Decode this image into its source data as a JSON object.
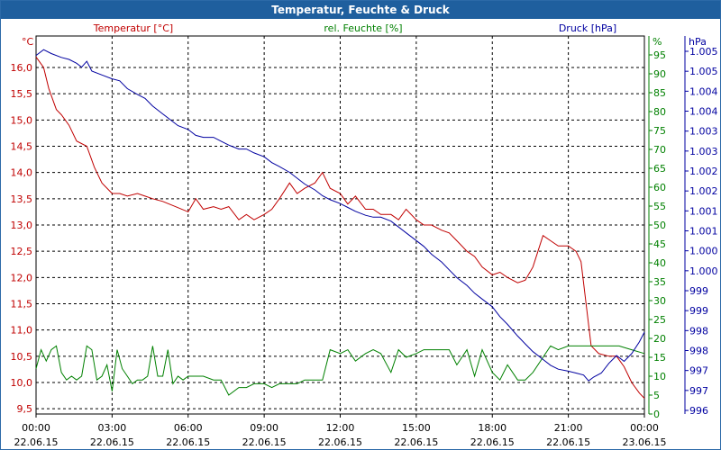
{
  "chart_data": {
    "type": "line",
    "title": "Temperatur, Feuchte & Druck",
    "x_tick_times": [
      "00:00",
      "03:00",
      "06:00",
      "09:00",
      "12:00",
      "15:00",
      "18:00",
      "21:00",
      "00:00"
    ],
    "x_tick_dates": [
      "22.06.15",
      "22.06.15",
      "22.06.15",
      "22.06.15",
      "22.06.15",
      "22.06.15",
      "22.06.15",
      "22.06.15",
      "23.06.15"
    ],
    "x_range_hours": [
      0,
      24
    ],
    "axes": {
      "temperature": {
        "unit": "°C",
        "range": [
          9.4,
          16.6
        ],
        "ticks": [
          "16,0",
          "15,5",
          "15,0",
          "14,5",
          "14,0",
          "13,5",
          "13,0",
          "12,5",
          "12,0",
          "11,5",
          "11,0",
          "10,5",
          "10,0",
          "9,5"
        ],
        "color": "#c00000"
      },
      "humidity": {
        "unit": "%",
        "range": [
          0,
          100
        ],
        "ticks": [
          "95",
          "90",
          "85",
          "80",
          "75",
          "70",
          "65",
          "60",
          "55",
          "50",
          "45",
          "40",
          "35",
          "30",
          "25",
          "20",
          "15",
          "10",
          "5",
          "0"
        ],
        "color": "#008000"
      },
      "pressure": {
        "unit": "hPa",
        "range": [
          996.0,
          1005.7
        ],
        "ticks": [
          "1.005",
          "1.005",
          "1.004",
          "1.004",
          "1.003",
          "1.003",
          "1.002",
          "1.002",
          "1.001",
          "1.001",
          "1.000",
          "1.000",
          "999",
          "999",
          "998",
          "998",
          "997",
          "997",
          "996"
        ],
        "color": "#0000a0"
      }
    },
    "series": [
      {
        "name": "Temperatur [°C]",
        "axis": "temperature",
        "color": "#c00000",
        "points": [
          [
            0,
            16.2
          ],
          [
            0.3,
            16.0
          ],
          [
            0.5,
            15.6
          ],
          [
            0.8,
            15.2
          ],
          [
            1.0,
            15.1
          ],
          [
            1.3,
            14.9
          ],
          [
            1.6,
            14.6
          ],
          [
            2.0,
            14.5
          ],
          [
            2.3,
            14.1
          ],
          [
            2.6,
            13.8
          ],
          [
            3.0,
            13.6
          ],
          [
            3.3,
            13.6
          ],
          [
            3.6,
            13.55
          ],
          [
            4.0,
            13.6
          ],
          [
            4.3,
            13.55
          ],
          [
            4.6,
            13.5
          ],
          [
            5.0,
            13.45
          ],
          [
            5.5,
            13.35
          ],
          [
            6.0,
            13.25
          ],
          [
            6.3,
            13.5
          ],
          [
            6.6,
            13.3
          ],
          [
            7.0,
            13.35
          ],
          [
            7.3,
            13.3
          ],
          [
            7.6,
            13.35
          ],
          [
            8.0,
            13.1
          ],
          [
            8.3,
            13.2
          ],
          [
            8.6,
            13.1
          ],
          [
            9.0,
            13.2
          ],
          [
            9.3,
            13.3
          ],
          [
            9.6,
            13.5
          ],
          [
            10.0,
            13.8
          ],
          [
            10.3,
            13.6
          ],
          [
            10.6,
            13.7
          ],
          [
            11.0,
            13.8
          ],
          [
            11.3,
            14.0
          ],
          [
            11.6,
            13.7
          ],
          [
            12.0,
            13.6
          ],
          [
            12.3,
            13.4
          ],
          [
            12.6,
            13.55
          ],
          [
            13.0,
            13.3
          ],
          [
            13.3,
            13.3
          ],
          [
            13.6,
            13.2
          ],
          [
            14.0,
            13.2
          ],
          [
            14.3,
            13.1
          ],
          [
            14.6,
            13.3
          ],
          [
            15.0,
            13.1
          ],
          [
            15.3,
            13.0
          ],
          [
            15.6,
            13.0
          ],
          [
            16.0,
            12.9
          ],
          [
            16.3,
            12.85
          ],
          [
            16.6,
            12.7
          ],
          [
            17.0,
            12.5
          ],
          [
            17.3,
            12.4
          ],
          [
            17.6,
            12.2
          ],
          [
            18.0,
            12.05
          ],
          [
            18.3,
            12.1
          ],
          [
            18.6,
            12.0
          ],
          [
            19.0,
            11.9
          ],
          [
            19.3,
            11.95
          ],
          [
            19.6,
            12.2
          ],
          [
            20.0,
            12.8
          ],
          [
            20.3,
            12.7
          ],
          [
            20.6,
            12.6
          ],
          [
            21.0,
            12.6
          ],
          [
            21.3,
            12.5
          ],
          [
            21.5,
            12.3
          ],
          [
            21.7,
            11.5
          ],
          [
            21.9,
            10.7
          ],
          [
            22.2,
            10.55
          ],
          [
            22.6,
            10.5
          ],
          [
            22.9,
            10.5
          ],
          [
            23.2,
            10.3
          ],
          [
            23.5,
            10.0
          ],
          [
            23.8,
            9.8
          ],
          [
            24.0,
            9.7
          ]
        ]
      },
      {
        "name": "rel. Feuchte [%]",
        "axis": "humidity",
        "color": "#008000",
        "points": [
          [
            0,
            12
          ],
          [
            0.2,
            17
          ],
          [
            0.4,
            14
          ],
          [
            0.6,
            17
          ],
          [
            0.8,
            18
          ],
          [
            1.0,
            11
          ],
          [
            1.2,
            9
          ],
          [
            1.4,
            10
          ],
          [
            1.6,
            9
          ],
          [
            1.8,
            10
          ],
          [
            2.0,
            18
          ],
          [
            2.2,
            17
          ],
          [
            2.4,
            9
          ],
          [
            2.6,
            10
          ],
          [
            2.8,
            13
          ],
          [
            3.0,
            6
          ],
          [
            3.2,
            17
          ],
          [
            3.4,
            12
          ],
          [
            3.6,
            10
          ],
          [
            3.8,
            8
          ],
          [
            4.0,
            9
          ],
          [
            4.2,
            9
          ],
          [
            4.4,
            10
          ],
          [
            4.6,
            18
          ],
          [
            4.8,
            10
          ],
          [
            5.0,
            10
          ],
          [
            5.2,
            17
          ],
          [
            5.4,
            8
          ],
          [
            5.6,
            10
          ],
          [
            5.8,
            9
          ],
          [
            6.0,
            10
          ],
          [
            6.3,
            10
          ],
          [
            6.6,
            10
          ],
          [
            7.0,
            9
          ],
          [
            7.3,
            9
          ],
          [
            7.6,
            5
          ],
          [
            8.0,
            7
          ],
          [
            8.3,
            7
          ],
          [
            8.6,
            8
          ],
          [
            9.0,
            8
          ],
          [
            9.3,
            7
          ],
          [
            9.6,
            8
          ],
          [
            10.0,
            8
          ],
          [
            10.3,
            8
          ],
          [
            10.6,
            9
          ],
          [
            11.0,
            9
          ],
          [
            11.3,
            9
          ],
          [
            11.6,
            17
          ],
          [
            12.0,
            16
          ],
          [
            12.3,
            17
          ],
          [
            12.6,
            14
          ],
          [
            13.0,
            16
          ],
          [
            13.3,
            17
          ],
          [
            13.6,
            16
          ],
          [
            14.0,
            11
          ],
          [
            14.3,
            17
          ],
          [
            14.6,
            15
          ],
          [
            15.0,
            16
          ],
          [
            15.3,
            17
          ],
          [
            15.6,
            17
          ],
          [
            16.0,
            17
          ],
          [
            16.3,
            17
          ],
          [
            16.6,
            13
          ],
          [
            17.0,
            17
          ],
          [
            17.3,
            10
          ],
          [
            17.6,
            17
          ],
          [
            18.0,
            11
          ],
          [
            18.3,
            9
          ],
          [
            18.6,
            13
          ],
          [
            19.0,
            9
          ],
          [
            19.3,
            9
          ],
          [
            19.6,
            11
          ],
          [
            20.0,
            15
          ],
          [
            20.3,
            18
          ],
          [
            20.6,
            17
          ],
          [
            21.0,
            18
          ],
          [
            21.5,
            18
          ],
          [
            22.0,
            18
          ],
          [
            22.5,
            18
          ],
          [
            23.0,
            18
          ],
          [
            23.5,
            17
          ],
          [
            24.0,
            16
          ]
        ]
      },
      {
        "name": "Druck [hPa]",
        "axis": "pressure",
        "color": "#0000a0",
        "points": [
          [
            0,
            1005.2
          ],
          [
            0.3,
            1005.35
          ],
          [
            0.6,
            1005.25
          ],
          [
            1.0,
            1005.15
          ],
          [
            1.3,
            1005.1
          ],
          [
            1.6,
            1005.0
          ],
          [
            1.8,
            1004.9
          ],
          [
            2.0,
            1005.05
          ],
          [
            2.2,
            1004.8
          ],
          [
            2.6,
            1004.7
          ],
          [
            3.0,
            1004.6
          ],
          [
            3.3,
            1004.55
          ],
          [
            3.6,
            1004.35
          ],
          [
            4.0,
            1004.2
          ],
          [
            4.3,
            1004.1
          ],
          [
            4.6,
            1003.9
          ],
          [
            5.0,
            1003.7
          ],
          [
            5.3,
            1003.55
          ],
          [
            5.6,
            1003.4
          ],
          [
            6.0,
            1003.3
          ],
          [
            6.3,
            1003.15
          ],
          [
            6.6,
            1003.1
          ],
          [
            7.0,
            1003.1
          ],
          [
            7.3,
            1003.0
          ],
          [
            7.6,
            1002.9
          ],
          [
            8.0,
            1002.8
          ],
          [
            8.3,
            1002.8
          ],
          [
            8.6,
            1002.7
          ],
          [
            9.0,
            1002.6
          ],
          [
            9.3,
            1002.45
          ],
          [
            9.6,
            1002.35
          ],
          [
            10.0,
            1002.2
          ],
          [
            10.3,
            1002.05
          ],
          [
            10.6,
            1001.9
          ],
          [
            11.0,
            1001.75
          ],
          [
            11.3,
            1001.6
          ],
          [
            11.6,
            1001.5
          ],
          [
            12.0,
            1001.4
          ],
          [
            12.3,
            1001.3
          ],
          [
            12.6,
            1001.2
          ],
          [
            13.0,
            1001.1
          ],
          [
            13.3,
            1001.05
          ],
          [
            13.6,
            1001.05
          ],
          [
            14.0,
            1000.95
          ],
          [
            14.3,
            1000.8
          ],
          [
            14.6,
            1000.65
          ],
          [
            15.0,
            1000.45
          ],
          [
            15.3,
            1000.3
          ],
          [
            15.6,
            1000.1
          ],
          [
            16.0,
            999.9
          ],
          [
            16.3,
            999.7
          ],
          [
            16.6,
            999.5
          ],
          [
            17.0,
            999.3
          ],
          [
            17.3,
            999.1
          ],
          [
            17.6,
            998.95
          ],
          [
            18.0,
            998.75
          ],
          [
            18.3,
            998.5
          ],
          [
            18.6,
            998.3
          ],
          [
            19.0,
            998.0
          ],
          [
            19.3,
            997.8
          ],
          [
            19.6,
            997.6
          ],
          [
            20.0,
            997.4
          ],
          [
            20.3,
            997.25
          ],
          [
            20.6,
            997.15
          ],
          [
            21.0,
            997.1
          ],
          [
            21.3,
            997.05
          ],
          [
            21.6,
            997.0
          ],
          [
            21.8,
            996.85
          ],
          [
            22.0,
            996.95
          ],
          [
            22.3,
            997.05
          ],
          [
            22.6,
            997.3
          ],
          [
            22.9,
            997.5
          ],
          [
            23.2,
            997.35
          ],
          [
            23.5,
            997.55
          ],
          [
            23.8,
            997.85
          ],
          [
            24.0,
            998.1
          ]
        ]
      }
    ]
  }
}
